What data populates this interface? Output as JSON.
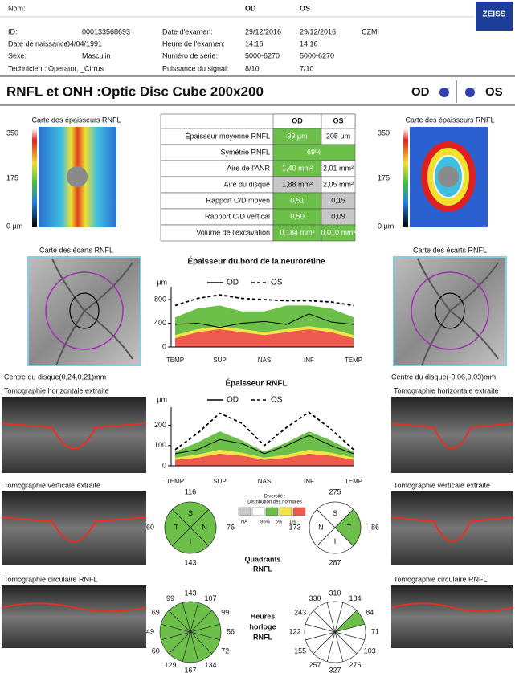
{
  "header": {
    "rows": [
      [
        "Nom:",
        "OD",
        "OS"
      ],
      [
        "ID:",
        "000133568693",
        "Date d'examen:",
        "29/12/2016",
        "29/12/2016",
        "CZMI"
      ],
      [
        "Date de naissance:",
        "04/04/1991",
        "Heure de l'examen:",
        "14:16",
        "14:16"
      ],
      [
        "Sexe:",
        "Masculin",
        "Numéro de série:",
        "5000-6270",
        "5000-6270"
      ],
      [
        "Technicien : Operator, _Cirrus",
        "Puissance du signal:",
        "8/10",
        "7/10"
      ]
    ],
    "logo": "ZEISS"
  },
  "title": {
    "text": "RNFL et ONH :Optic Disc Cube 200x200",
    "od": "OD",
    "os": "OS",
    "od_color": "#2f3fae",
    "os_color": "#2f3fae"
  },
  "panels": {
    "od": {
      "thickness_title": "Carte des épaisseurs RNFL",
      "scale": [
        "350",
        "175",
        "0 µm"
      ],
      "deviation_title": "Carte des écarts RNFL",
      "disc_center": "Centre du disque(0,24,0,21)mm",
      "tomo_h": "Tomographie horizontale extraite",
      "tomo_v": "Tomographie verticale extraite",
      "tomo_c": "Tomographie circulaire RNFL"
    },
    "os": {
      "thickness_title": "Carte des épaisseurs RNFL",
      "scale": [
        "350",
        "175",
        "0 µm"
      ],
      "deviation_title": "Carte des écarts RNFL",
      "disc_center": "Centre du disque(-0,06,0,03)mm",
      "tomo_h": "Tomographie horizontale extraite",
      "tomo_v": "Tomographie verticale extraite",
      "tomo_c": "Tomographie circulaire RNFL"
    }
  },
  "table": {
    "header": [
      "OD",
      "OS"
    ],
    "rows": [
      {
        "label": "Épaisseur moyenne RNFL",
        "od": "99 µm",
        "os": "205 µm",
        "od_color": "#6cc04a",
        "os_color": "#ffffff"
      },
      {
        "label": "Symétrie RNFL",
        "value": "69%",
        "color": "#6cc04a"
      },
      {
        "label": "Aire de l'ANR",
        "od": "1,40 mm²",
        "os": "2,01 mm²",
        "od_color": "#6cc04a",
        "os_color": "#ffffff"
      },
      {
        "label": "Aire du disque",
        "od": "1,88 mm²",
        "os": "2,05 mm²",
        "od_color": "#c8c8c8",
        "os_color": "#ffffff"
      },
      {
        "label": "Rapport C/D moyen",
        "od": "0,51",
        "os": "0,15",
        "od_color": "#6cc04a",
        "os_color": "#c8c8c8"
      },
      {
        "label": "Rapport C/D vertical",
        "od": "0,50",
        "os": "0,09",
        "od_color": "#6cc04a",
        "os_color": "#c8c8c8"
      },
      {
        "label": "Volume de l'excavation",
        "od": "0,184 mm³",
        "os": "0,010 mm³",
        "od_color": "#6cc04a",
        "os_color": "#6cc04a"
      }
    ]
  },
  "charts": [
    {
      "type": "line",
      "title": "Épaisseur du bord de la neurorétine",
      "unit": "µm",
      "categories": [
        "TEMP",
        null,
        "SUP",
        null,
        "NAS",
        null,
        "INF",
        null,
        "TEMP"
      ],
      "ylim": [
        0,
        950
      ],
      "yticks": [
        0,
        400,
        800
      ],
      "bands": [
        {
          "color": "#ee5a4e",
          "values": [
            150,
            250,
            300,
            250,
            200,
            250,
            300,
            250,
            150
          ]
        },
        {
          "color": "#f2e443",
          "values": [
            50,
            50,
            50,
            50,
            50,
            50,
            50,
            50,
            50
          ]
        },
        {
          "color": "#6cc04a",
          "values": [
            300,
            350,
            350,
            300,
            350,
            400,
            350,
            350,
            300
          ]
        }
      ],
      "series": [
        {
          "name": "OD",
          "color": "#000000",
          "dash": false,
          "values": [
            380,
            400,
            330,
            400,
            430,
            380,
            560,
            420,
            380
          ]
        },
        {
          "name": "OS",
          "color": "#000000",
          "dash": true,
          "values": [
            700,
            820,
            880,
            820,
            800,
            780,
            780,
            760,
            700
          ]
        }
      ]
    },
    {
      "type": "line",
      "title": "Épaisseur RNFL",
      "unit": "µm",
      "categories": [
        "TEMP",
        null,
        "SUP",
        null,
        "NAS",
        null,
        "INF",
        null,
        "TEMP"
      ],
      "ylim": [
        0,
        270
      ],
      "yticks": [
        0,
        100,
        200
      ],
      "bands": [
        {
          "color": "#ee5a4e",
          "values": [
            30,
            40,
            60,
            50,
            30,
            40,
            60,
            50,
            30
          ]
        },
        {
          "color": "#f2e443",
          "values": [
            10,
            15,
            20,
            15,
            10,
            15,
            20,
            15,
            10
          ]
        },
        {
          "color": "#6cc04a",
          "values": [
            30,
            60,
            90,
            60,
            30,
            60,
            90,
            60,
            30
          ]
        }
      ],
      "series": [
        {
          "name": "OD",
          "color": "#000000",
          "dash": false,
          "values": [
            60,
            80,
            130,
            110,
            60,
            100,
            150,
            100,
            60
          ]
        },
        {
          "name": "OS",
          "color": "#000000",
          "dash": true,
          "values": [
            80,
            160,
            260,
            210,
            100,
            190,
            265,
            180,
            80
          ]
        }
      ]
    }
  ],
  "legend": {
    "title": [
      "Diversité :",
      "Distribution des normales"
    ],
    "colors": [
      "#c8c8c8",
      "#ffffff",
      "#6cc04a",
      "#f2e443",
      "#ee5a4e"
    ],
    "labels": [
      "NA",
      "95%",
      "5%",
      "1%"
    ]
  },
  "quadrants": {
    "label": [
      "Quadrants",
      "RNFL"
    ],
    "od": [
      {
        "letter": "S",
        "value": 116,
        "color": "#6cc04a"
      },
      {
        "letter": "N",
        "value": 76,
        "color": "#6cc04a"
      },
      {
        "letter": "I",
        "value": 143,
        "color": "#6cc04a"
      },
      {
        "letter": "T",
        "value": 60,
        "color": "#6cc04a"
      }
    ],
    "os": [
      {
        "letter": "S",
        "value": 275,
        "color": "#ffffff"
      },
      {
        "letter": "T",
        "value": 86,
        "color": "#6cc04a"
      },
      {
        "letter": "I",
        "value": 287,
        "color": "#ffffff"
      },
      {
        "letter": "N",
        "value": 173,
        "color": "#ffffff"
      }
    ]
  },
  "clock": {
    "label": [
      "Heures",
      "horloge",
      "RNFL"
    ],
    "od": {
      "values": [
        143,
        107,
        99,
        56,
        72,
        134,
        167,
        129,
        60,
        49,
        69,
        99
      ],
      "colors": [
        "#6cc04a",
        "#6cc04a",
        "#6cc04a",
        "#6cc04a",
        "#6cc04a",
        "#6cc04a",
        "#6cc04a",
        "#6cc04a",
        "#6cc04a",
        "#6cc04a",
        "#6cc04a",
        "#6cc04a"
      ]
    },
    "os": {
      "values": [
        310,
        184,
        84,
        71,
        103,
        276,
        327,
        257,
        155,
        122,
        243,
        330
      ],
      "colors": [
        "#ffffff",
        "#ffffff",
        "#6cc04a",
        "#ffffff",
        "#ffffff",
        "#ffffff",
        "#ffffff",
        "#ffffff",
        "#ffffff",
        "#ffffff",
        "#ffffff",
        "#ffffff"
      ]
    }
  }
}
